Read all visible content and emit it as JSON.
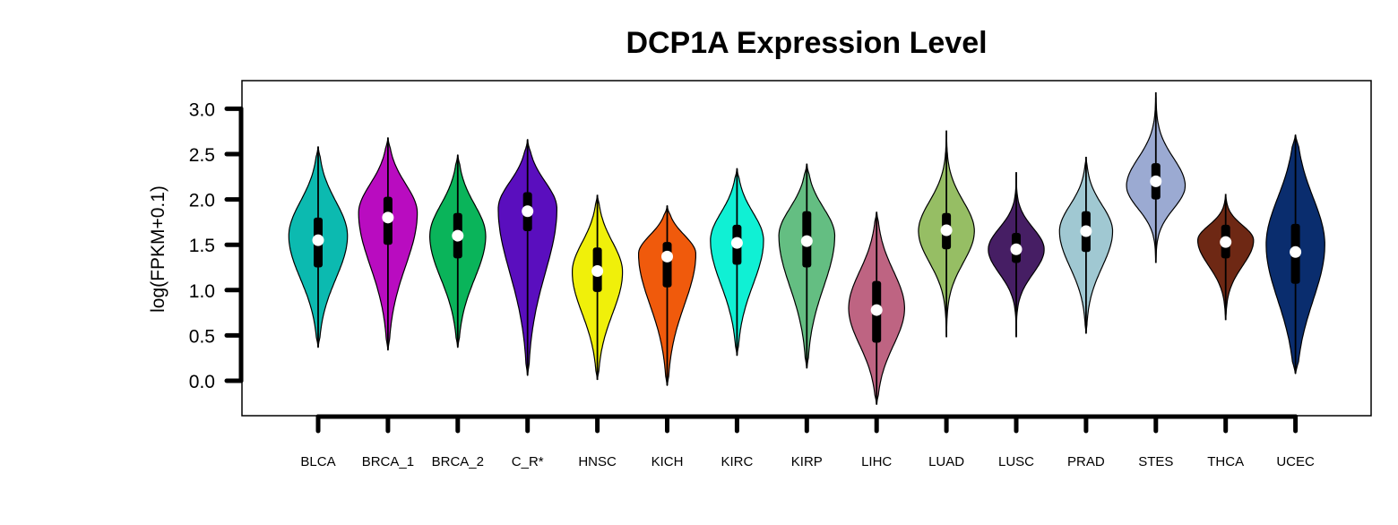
{
  "chart_data": {
    "type": "violin",
    "title": "DCP1A Expression Level",
    "xlabel": "",
    "ylabel": "log(FPKM+0.1)",
    "ylim": [
      -0.4,
      3.3
    ],
    "yticks": [
      "0.0",
      "0.5",
      "1.0",
      "1.5",
      "2.0",
      "2.5",
      "3.0"
    ],
    "grid": false,
    "categories": [
      "BLCA",
      "BRCA_1",
      "BRCA_2",
      "C_R*",
      "HNSC",
      "KICH",
      "KIRC",
      "KIRP",
      "LIHC",
      "LUAD",
      "LUSC",
      "PRAD",
      "STES",
      "THCA",
      "UCEC"
    ],
    "series": [
      {
        "category": "BLCA",
        "color": "#0cbab0",
        "min": 0.37,
        "q1": 1.25,
        "median": 1.55,
        "q3": 1.8,
        "max": 2.58,
        "mode": 1.6,
        "halfwidth": 0.42,
        "shape": 1.0
      },
      {
        "category": "BRCA_1",
        "color": "#b90cc0",
        "min": 0.34,
        "q1": 1.5,
        "median": 1.8,
        "q3": 2.03,
        "max": 2.68,
        "mode": 1.85,
        "halfwidth": 0.42,
        "shape": 1.0
      },
      {
        "category": "BRCA_2",
        "color": "#0ab45a",
        "min": 0.37,
        "q1": 1.35,
        "median": 1.6,
        "q3": 1.85,
        "max": 2.49,
        "mode": 1.6,
        "halfwidth": 0.4,
        "shape": 1.0
      },
      {
        "category": "C_R*",
        "color": "#5a0ebe",
        "min": 0.06,
        "q1": 1.65,
        "median": 1.87,
        "q3": 2.08,
        "max": 2.66,
        "mode": 1.9,
        "halfwidth": 0.42,
        "shape": 1.0
      },
      {
        "category": "HNSC",
        "color": "#f0f00a",
        "min": 0.01,
        "q1": 0.98,
        "median": 1.21,
        "q3": 1.47,
        "max": 2.05,
        "mode": 1.2,
        "halfwidth": 0.36,
        "shape": 1.0
      },
      {
        "category": "KICH",
        "color": "#f05a0c",
        "min": -0.05,
        "q1": 1.03,
        "median": 1.37,
        "q3": 1.53,
        "max": 1.93,
        "mode": 1.4,
        "halfwidth": 0.41,
        "shape": 1.0
      },
      {
        "category": "KIRC",
        "color": "#10f0d4",
        "min": 0.28,
        "q1": 1.28,
        "median": 1.52,
        "q3": 1.72,
        "max": 2.34,
        "mode": 1.55,
        "halfwidth": 0.38,
        "shape": 1.0
      },
      {
        "category": "KIRP",
        "color": "#64be82",
        "min": 0.14,
        "q1": 1.25,
        "median": 1.54,
        "q3": 1.87,
        "max": 2.39,
        "mode": 1.6,
        "halfwidth": 0.4,
        "shape": 1.0
      },
      {
        "category": "LIHC",
        "color": "#be6482",
        "min": -0.26,
        "q1": 0.42,
        "median": 0.78,
        "q3": 1.1,
        "max": 1.86,
        "mode": 0.8,
        "halfwidth": 0.4,
        "shape": 1.0
      },
      {
        "category": "LUAD",
        "color": "#96be64",
        "min": 0.48,
        "q1": 1.45,
        "median": 1.66,
        "q3": 1.85,
        "max": 2.76,
        "mode": 1.65,
        "halfwidth": 0.4,
        "shape": 1.3
      },
      {
        "category": "LUSC",
        "color": "#461e64",
        "min": 0.48,
        "q1": 1.3,
        "median": 1.45,
        "q3": 1.63,
        "max": 2.3,
        "mode": 1.45,
        "halfwidth": 0.4,
        "shape": 1.4
      },
      {
        "category": "PRAD",
        "color": "#a0c8d2",
        "min": 0.52,
        "q1": 1.42,
        "median": 1.65,
        "q3": 1.87,
        "max": 2.47,
        "mode": 1.65,
        "halfwidth": 0.38,
        "shape": 1.1
      },
      {
        "category": "STES",
        "color": "#9baad2",
        "min": 1.3,
        "q1": 2.0,
        "median": 2.2,
        "q3": 2.4,
        "max": 3.18,
        "mode": 2.15,
        "halfwidth": 0.42,
        "shape": 1.3
      },
      {
        "category": "THCA",
        "color": "#6e2814",
        "min": 0.67,
        "q1": 1.35,
        "median": 1.53,
        "q3": 1.72,
        "max": 2.06,
        "mode": 1.55,
        "halfwidth": 0.4,
        "shape": 1.2
      },
      {
        "category": "UCEC",
        "color": "#0a2d6e",
        "min": 0.08,
        "q1": 1.07,
        "median": 1.42,
        "q3": 1.73,
        "max": 2.71,
        "mode": 1.5,
        "halfwidth": 0.42,
        "shape": 0.9
      }
    ]
  }
}
